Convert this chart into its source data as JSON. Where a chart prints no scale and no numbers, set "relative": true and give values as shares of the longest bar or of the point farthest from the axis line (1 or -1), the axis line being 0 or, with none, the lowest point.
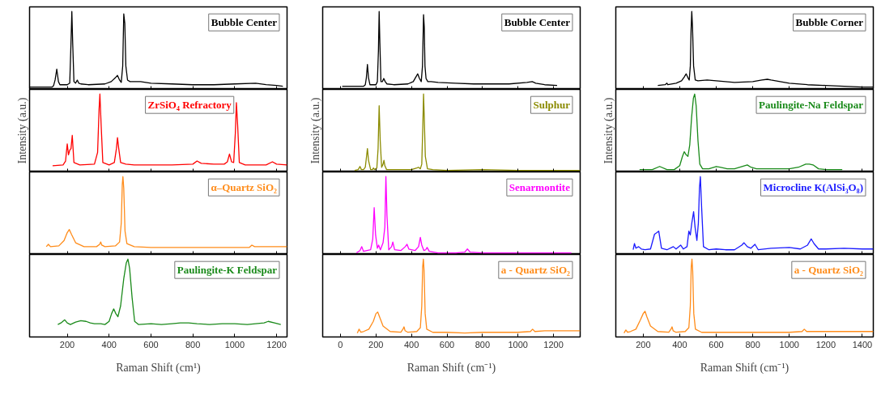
{
  "chart_data": [
    {
      "type": "line",
      "relative": true,
      "xlim": [
        20,
        1250
      ],
      "xticks": [
        200,
        400,
        600,
        800,
        1000,
        1200
      ],
      "tick_labels": false,
      "annotations": [
        "Bubble Center"
      ],
      "x": [
        20,
        128,
        135,
        142,
        150,
        158,
        165,
        200,
        212,
        218,
        222,
        226,
        232,
        240,
        248,
        255,
        265,
        300,
        380,
        410,
        430,
        440,
        450,
        458,
        465,
        470,
        475,
        480,
        488,
        500,
        550,
        600,
        700,
        800,
        900,
        1000,
        1100,
        1150,
        1200,
        1230
      ],
      "series": [
        {
          "color": "#000000",
          "values": [
            0.03,
            0.03,
            0.05,
            0.12,
            0.26,
            0.1,
            0.06,
            0.06,
            0.08,
            0.6,
            1.0,
            0.6,
            0.1,
            0.08,
            0.12,
            0.08,
            0.07,
            0.06,
            0.07,
            0.1,
            0.15,
            0.18,
            0.12,
            0.09,
            0.3,
            0.97,
            0.85,
            0.3,
            0.12,
            0.1,
            0.1,
            0.08,
            0.07,
            0.06,
            0.06,
            0.07,
            0.08,
            0.06,
            0.05,
            0.04
          ]
        }
      ]
    },
    {
      "type": "line",
      "relative": true,
      "xlim": [
        20,
        1250
      ],
      "xticks": [
        200,
        400,
        600,
        800,
        1000,
        1200
      ],
      "tick_labels": false,
      "annotations": [
        "ZrSiO₄ Refractory"
      ],
      "ylabel": "Intensity (a.u.)",
      "x": [
        130,
        180,
        192,
        200,
        206,
        212,
        218,
        224,
        232,
        260,
        330,
        345,
        352,
        356,
        362,
        370,
        400,
        425,
        435,
        440,
        446,
        455,
        480,
        520,
        600,
        700,
        800,
        820,
        840,
        900,
        950,
        965,
        975,
        985,
        995,
        1003,
        1008,
        1014,
        1022,
        1050,
        1150,
        1180,
        1200,
        1250
      ],
      "series": [
        {
          "color": "#ff0000",
          "values": [
            0.08,
            0.09,
            0.14,
            0.36,
            0.22,
            0.28,
            0.3,
            0.47,
            0.12,
            0.09,
            0.1,
            0.25,
            0.8,
            1.0,
            0.6,
            0.12,
            0.09,
            0.12,
            0.3,
            0.44,
            0.3,
            0.12,
            0.1,
            0.09,
            0.09,
            0.09,
            0.1,
            0.14,
            0.11,
            0.1,
            0.1,
            0.13,
            0.23,
            0.13,
            0.12,
            0.5,
            0.89,
            0.6,
            0.12,
            0.09,
            0.09,
            0.13,
            0.1,
            0.09
          ]
        }
      ]
    },
    {
      "type": "line",
      "relative": true,
      "xlim": [
        20,
        1250
      ],
      "xticks": [
        200,
        400,
        600,
        800,
        1000,
        1200
      ],
      "tick_labels": false,
      "annotations": [
        "α–Quartz SiO₂"
      ],
      "x": [
        100,
        110,
        120,
        160,
        185,
        200,
        210,
        220,
        240,
        280,
        340,
        355,
        360,
        365,
        380,
        430,
        450,
        458,
        463,
        466,
        470,
        476,
        485,
        520,
        600,
        800,
        1000,
        1070,
        1082,
        1095,
        1150,
        1250
      ],
      "series": [
        {
          "color": "#ff8c1a",
          "values": [
            0.1,
            0.13,
            0.1,
            0.11,
            0.18,
            0.28,
            0.32,
            0.26,
            0.15,
            0.1,
            0.1,
            0.13,
            0.16,
            0.12,
            0.1,
            0.11,
            0.16,
            0.4,
            0.9,
            1.0,
            0.85,
            0.3,
            0.14,
            0.1,
            0.09,
            0.09,
            0.09,
            0.09,
            0.12,
            0.1,
            0.1,
            0.1
          ]
        }
      ]
    },
    {
      "type": "line",
      "relative": true,
      "xlim": [
        20,
        1250
      ],
      "xticks": [
        200,
        400,
        600,
        800,
        1000,
        1200
      ],
      "tick_labels": "x",
      "annotations": [
        "Paulingite-K Feldspar"
      ],
      "xlabel": "Raman Shift (cm¹)",
      "x": [
        155,
        170,
        188,
        200,
        215,
        240,
        265,
        290,
        310,
        330,
        360,
        380,
        400,
        412,
        422,
        432,
        442,
        455,
        470,
        482,
        490,
        498,
        510,
        522,
        540,
        600,
        650,
        700,
        740,
        780,
        820,
        880,
        940,
        1000,
        1060,
        1100,
        1140,
        1160,
        1190,
        1220
      ],
      "series": [
        {
          "color": "#1a8a1a",
          "values": [
            0.16,
            0.18,
            0.22,
            0.18,
            0.16,
            0.19,
            0.21,
            0.2,
            0.18,
            0.17,
            0.17,
            0.16,
            0.2,
            0.3,
            0.36,
            0.3,
            0.26,
            0.4,
            0.75,
            0.95,
            1.0,
            0.88,
            0.5,
            0.2,
            0.16,
            0.17,
            0.16,
            0.17,
            0.18,
            0.18,
            0.17,
            0.16,
            0.17,
            0.17,
            0.16,
            0.17,
            0.18,
            0.2,
            0.18,
            0.16
          ]
        }
      ]
    },
    {
      "type": "line",
      "relative": true,
      "xlim": [
        -100,
        1350
      ],
      "xticks": [
        0,
        200,
        400,
        600,
        800,
        1000,
        1200
      ],
      "tick_labels": false,
      "annotations": [
        "Bubble Center"
      ],
      "x": [
        10,
        130,
        140,
        146,
        152,
        158,
        166,
        200,
        208,
        214,
        218,
        222,
        228,
        236,
        244,
        252,
        262,
        300,
        380,
        410,
        425,
        435,
        445,
        455,
        462,
        468,
        472,
        476,
        482,
        492,
        510,
        550,
        650,
        750,
        850,
        950,
        1050,
        1080,
        1100,
        1150,
        1220
      ],
      "series": [
        {
          "color": "#000000",
          "values": [
            0.04,
            0.04,
            0.06,
            0.15,
            0.32,
            0.15,
            0.06,
            0.06,
            0.1,
            0.5,
            1.0,
            0.6,
            0.1,
            0.1,
            0.14,
            0.1,
            0.07,
            0.06,
            0.07,
            0.1,
            0.16,
            0.2,
            0.14,
            0.1,
            0.3,
            0.96,
            0.8,
            0.3,
            0.14,
            0.1,
            0.1,
            0.09,
            0.08,
            0.07,
            0.07,
            0.07,
            0.09,
            0.1,
            0.08,
            0.06,
            0.05
          ]
        }
      ]
    },
    {
      "type": "line",
      "relative": true,
      "xlim": [
        -100,
        1350
      ],
      "xticks": [
        0,
        200,
        400,
        600,
        800,
        1000,
        1200
      ],
      "tick_labels": false,
      "annotations": [
        "Sulphur"
      ],
      "ylabel": "Intensity (a.u.)",
      "x": [
        80,
        100,
        110,
        118,
        130,
        140,
        147,
        152,
        158,
        170,
        180,
        186,
        192,
        205,
        212,
        218,
        224,
        232,
        240,
        245,
        250,
        260,
        300,
        400,
        430,
        440,
        450,
        458,
        464,
        468,
        472,
        478,
        490,
        520,
        600,
        800,
        1000,
        1350
      ],
      "series": [
        {
          "color": "#8b8b00",
          "values": [
            0.02,
            0.03,
            0.07,
            0.03,
            0.03,
            0.06,
            0.2,
            0.3,
            0.15,
            0.03,
            0.03,
            0.05,
            0.03,
            0.05,
            0.3,
            0.85,
            0.4,
            0.06,
            0.1,
            0.15,
            0.08,
            0.03,
            0.03,
            0.03,
            0.05,
            0.06,
            0.04,
            0.1,
            0.6,
            1.0,
            0.7,
            0.2,
            0.04,
            0.03,
            0.02,
            0.03,
            0.02,
            0.02
          ]
        }
      ]
    },
    {
      "type": "line",
      "relative": true,
      "xlim": [
        -100,
        1350
      ],
      "xticks": [
        0,
        200,
        400,
        600,
        800,
        1000,
        1200
      ],
      "tick_labels": false,
      "annotations": [
        "Senarmontite"
      ],
      "x": [
        90,
        110,
        120,
        130,
        170,
        182,
        190,
        198,
        208,
        215,
        225,
        240,
        250,
        256,
        262,
        272,
        288,
        295,
        305,
        340,
        365,
        375,
        385,
        420,
        440,
        450,
        458,
        470,
        480,
        488,
        500,
        550,
        650,
        700,
        715,
        730,
        800,
        1000,
        1300
      ],
      "series": [
        {
          "color": "#ff00ff",
          "values": [
            0.02,
            0.05,
            0.1,
            0.04,
            0.06,
            0.2,
            0.6,
            0.25,
            0.08,
            0.12,
            0.06,
            0.15,
            0.35,
            1.0,
            0.5,
            0.06,
            0.1,
            0.16,
            0.06,
            0.05,
            0.1,
            0.13,
            0.07,
            0.05,
            0.1,
            0.22,
            0.12,
            0.05,
            0.06,
            0.09,
            0.04,
            0.02,
            0.02,
            0.03,
            0.07,
            0.03,
            0.02,
            0.02,
            0.02
          ]
        }
      ]
    },
    {
      "type": "line",
      "relative": true,
      "xlim": [
        -100,
        1350
      ],
      "xticks": [
        0,
        200,
        400,
        600,
        800,
        1000,
        1200
      ],
      "tick_labels": "x",
      "annotations": [
        "a - Quartz SiO₂"
      ],
      "xlabel": "Raman Shift (cm⁻¹)",
      "x": [
        95,
        105,
        115,
        130,
        160,
        185,
        200,
        210,
        220,
        240,
        280,
        340,
        352,
        358,
        364,
        380,
        430,
        450,
        458,
        463,
        467,
        471,
        477,
        486,
        520,
        600,
        700,
        800,
        900,
        1000,
        1070,
        1082,
        1095,
        1150,
        1350
      ],
      "series": [
        {
          "color": "#ff8c1a",
          "values": [
            0.05,
            0.1,
            0.06,
            0.07,
            0.1,
            0.2,
            0.3,
            0.32,
            0.26,
            0.14,
            0.07,
            0.06,
            0.1,
            0.13,
            0.08,
            0.06,
            0.07,
            0.12,
            0.4,
            0.9,
            1.0,
            0.85,
            0.3,
            0.1,
            0.06,
            0.06,
            0.05,
            0.06,
            0.06,
            0.06,
            0.07,
            0.1,
            0.07,
            0.08,
            0.08
          ]
        }
      ]
    },
    {
      "type": "line",
      "relative": true,
      "xlim": [
        50,
        1460
      ],
      "xticks": [
        200,
        400,
        600,
        800,
        1000,
        1200,
        1400
      ],
      "tick_labels": false,
      "annotations": [
        "Bubble Corner"
      ],
      "x": [
        280,
        320,
        330,
        335,
        380,
        410,
        425,
        435,
        445,
        452,
        458,
        462,
        466,
        470,
        476,
        485,
        500,
        550,
        600,
        700,
        800,
        850,
        880,
        900,
        950,
        1000,
        1100,
        1200,
        1300,
        1400,
        1460
      ],
      "series": [
        {
          "color": "#000000",
          "values": [
            0.05,
            0.06,
            0.08,
            0.06,
            0.08,
            0.11,
            0.16,
            0.2,
            0.15,
            0.12,
            0.3,
            0.75,
            1.0,
            0.8,
            0.3,
            0.12,
            0.11,
            0.12,
            0.11,
            0.09,
            0.1,
            0.12,
            0.13,
            0.12,
            0.1,
            0.08,
            0.06,
            0.05,
            0.04,
            0.03,
            0.03
          ]
        }
      ]
    },
    {
      "type": "line",
      "relative": true,
      "xlim": [
        50,
        1460
      ],
      "xticks": [
        200,
        400,
        600,
        800,
        1000,
        1200,
        1400
      ],
      "tick_labels": false,
      "annotations": [
        "Paulingite-Na Feldspar"
      ],
      "ylabel": "Intensity (a.u.)",
      "x": [
        180,
        250,
        290,
        330,
        370,
        400,
        415,
        425,
        435,
        445,
        455,
        465,
        475,
        482,
        490,
        500,
        510,
        525,
        560,
        600,
        620,
        660,
        700,
        770,
        790,
        820,
        900,
        1000,
        1050,
        1090,
        1110,
        1130,
        1160,
        1200,
        1290
      ],
      "series": [
        {
          "color": "#1a8a1a",
          "values": [
            0.03,
            0.03,
            0.07,
            0.03,
            0.03,
            0.08,
            0.2,
            0.26,
            0.22,
            0.2,
            0.35,
            0.7,
            0.95,
            1.0,
            0.85,
            0.4,
            0.1,
            0.04,
            0.04,
            0.07,
            0.06,
            0.04,
            0.04,
            0.09,
            0.06,
            0.04,
            0.04,
            0.04,
            0.06,
            0.1,
            0.1,
            0.09,
            0.04,
            0.03,
            0.03
          ]
        }
      ]
    },
    {
      "type": "line",
      "relative": true,
      "xlim": [
        50,
        1460
      ],
      "xticks": [
        200,
        400,
        600,
        800,
        1000,
        1200,
        1400
      ],
      "tick_labels": false,
      "annotations": [
        "Microcline K(AlSi₃O₈)"
      ],
      "x": [
        145,
        152,
        160,
        175,
        190,
        210,
        240,
        262,
        275,
        285,
        300,
        330,
        365,
        380,
        405,
        420,
        440,
        450,
        458,
        466,
        476,
        484,
        494,
        502,
        508,
        513,
        520,
        530,
        560,
        600,
        650,
        700,
        740,
        752,
        770,
        790,
        812,
        830,
        900,
        1000,
        1060,
        1100,
        1120,
        1135,
        1160,
        1200,
        1300,
        1400,
        1460
      ],
      "series": [
        {
          "color": "#1a1aff",
          "values": [
            0.06,
            0.14,
            0.08,
            0.1,
            0.07,
            0.06,
            0.07,
            0.26,
            0.28,
            0.3,
            0.08,
            0.06,
            0.1,
            0.07,
            0.12,
            0.07,
            0.1,
            0.3,
            0.25,
            0.4,
            0.55,
            0.35,
            0.18,
            0.4,
            0.85,
            1.0,
            0.6,
            0.1,
            0.06,
            0.07,
            0.06,
            0.06,
            0.12,
            0.15,
            0.1,
            0.08,
            0.13,
            0.06,
            0.08,
            0.09,
            0.07,
            0.12,
            0.2,
            0.14,
            0.07,
            0.07,
            0.08,
            0.07,
            0.07
          ]
        }
      ]
    },
    {
      "type": "line",
      "relative": true,
      "xlim": [
        50,
        1460
      ],
      "xticks": [
        200,
        400,
        600,
        800,
        1000,
        1200,
        1400
      ],
      "tick_labels": "x",
      "annotations": [
        "a - Quartz SiO₂"
      ],
      "xlabel": "Raman Shift (cm⁻¹)",
      "x": [
        95,
        105,
        115,
        130,
        160,
        185,
        200,
        210,
        220,
        240,
        280,
        340,
        352,
        358,
        364,
        380,
        430,
        450,
        458,
        463,
        467,
        471,
        477,
        486,
        520,
        600,
        700,
        800,
        900,
        1000,
        1070,
        1082,
        1095,
        1150,
        1460
      ],
      "series": [
        {
          "color": "#ff8c1a",
          "values": [
            0.05,
            0.09,
            0.06,
            0.07,
            0.1,
            0.22,
            0.3,
            0.33,
            0.26,
            0.14,
            0.07,
            0.06,
            0.1,
            0.13,
            0.08,
            0.06,
            0.07,
            0.12,
            0.4,
            0.9,
            1.0,
            0.85,
            0.3,
            0.1,
            0.06,
            0.06,
            0.06,
            0.06,
            0.06,
            0.06,
            0.07,
            0.1,
            0.07,
            0.07,
            0.07
          ]
        }
      ]
    }
  ]
}
